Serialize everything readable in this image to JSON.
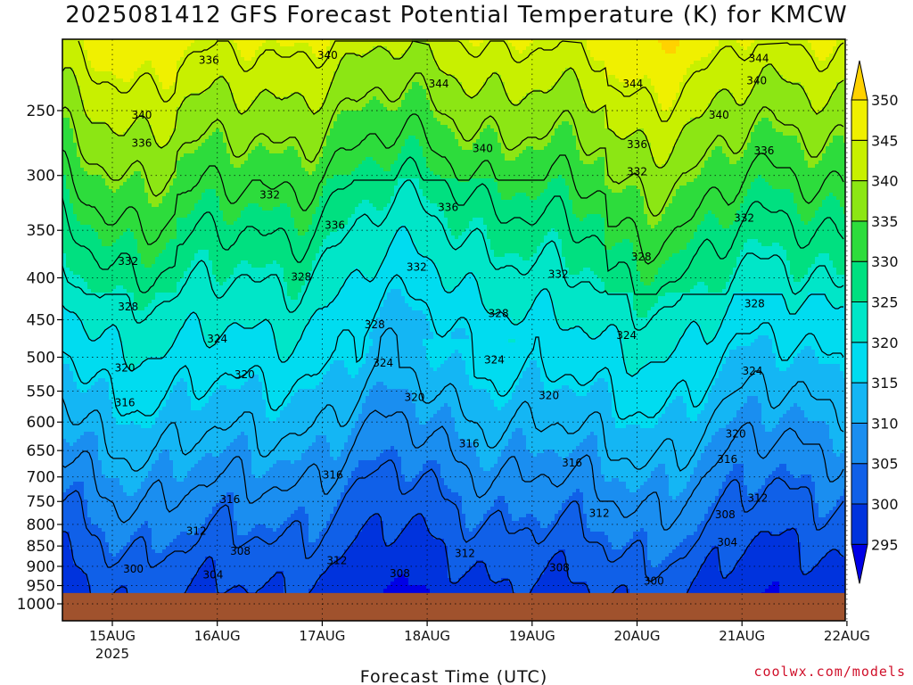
{
  "title": "2025081412 GFS Forecast Potential Temperature (K) for KMCW",
  "credit": "coolwx.com/models",
  "chart_data": {
    "type": "heatmap",
    "title": "2025081412 GFS Forecast Potential Temperature (K) for KMCW",
    "xlabel": "Forecast Time (UTC)",
    "ylabel": "",
    "x_ticks": [
      "15AUG",
      "16AUG",
      "17AUG",
      "18AUG",
      "19AUG",
      "20AUG",
      "21AUG",
      "22AUG"
    ],
    "x_year_label": "2025",
    "y_ticks": [
      250,
      300,
      350,
      400,
      450,
      500,
      550,
      600,
      650,
      700,
      750,
      800,
      850,
      900,
      950,
      1000
    ],
    "y_scale": "log",
    "y_inverted": true,
    "colorbar": {
      "levels": [
        295,
        300,
        305,
        310,
        315,
        320,
        325,
        330,
        335,
        340,
        345,
        350
      ],
      "colors": [
        "#0000e6",
        "#0033dd",
        "#1060e8",
        "#1a8ef0",
        "#14b6f4",
        "#00dcf0",
        "#00e6c8",
        "#00e080",
        "#2ddc3c",
        "#8ce614",
        "#c8f000",
        "#f0f000",
        "#ffd200"
      ]
    },
    "ground_color": "#a0522d",
    "contour_levels": [
      300,
      304,
      308,
      312,
      316,
      320,
      324,
      328,
      332,
      336,
      340,
      344
    ],
    "contour_labels": [
      {
        "text": "336",
        "t": 0.92,
        "p": 217
      },
      {
        "text": "340",
        "t": 2.05,
        "p": 214
      },
      {
        "text": "344",
        "t": 3.11,
        "p": 232
      },
      {
        "text": "344",
        "t": 4.96,
        "p": 232
      },
      {
        "text": "344",
        "t": 6.16,
        "p": 216
      },
      {
        "text": "340",
        "t": 6.14,
        "p": 230
      },
      {
        "text": "340",
        "t": 0.28,
        "p": 253
      },
      {
        "text": "340",
        "t": 5.78,
        "p": 253
      },
      {
        "text": "336",
        "t": 0.28,
        "p": 274
      },
      {
        "text": "340",
        "t": 3.53,
        "p": 278
      },
      {
        "text": "336",
        "t": 5.0,
        "p": 275
      },
      {
        "text": "336",
        "t": 6.21,
        "p": 280
      },
      {
        "text": "332",
        "t": 5.0,
        "p": 297
      },
      {
        "text": "332",
        "t": 1.5,
        "p": 317
      },
      {
        "text": "336",
        "t": 3.2,
        "p": 328
      },
      {
        "text": "336",
        "t": 2.12,
        "p": 345
      },
      {
        "text": "332",
        "t": 6.02,
        "p": 338
      },
      {
        "text": "332",
        "t": 0.15,
        "p": 382
      },
      {
        "text": "332",
        "t": 2.9,
        "p": 388
      },
      {
        "text": "332",
        "t": 4.25,
        "p": 396
      },
      {
        "text": "328",
        "t": 5.04,
        "p": 377
      },
      {
        "text": "328",
        "t": 1.8,
        "p": 399
      },
      {
        "text": "328",
        "t": 0.15,
        "p": 434
      },
      {
        "text": "328",
        "t": 3.68,
        "p": 442
      },
      {
        "text": "328",
        "t": 2.5,
        "p": 456
      },
      {
        "text": "328",
        "t": 6.12,
        "p": 430
      },
      {
        "text": "324",
        "t": 1.0,
        "p": 475
      },
      {
        "text": "324",
        "t": 4.9,
        "p": 470
      },
      {
        "text": "324",
        "t": 2.58,
        "p": 508
      },
      {
        "text": "324",
        "t": 3.64,
        "p": 504
      },
      {
        "text": "324",
        "t": 6.1,
        "p": 520
      },
      {
        "text": "320",
        "t": 0.12,
        "p": 515
      },
      {
        "text": "320",
        "t": 1.26,
        "p": 525
      },
      {
        "text": "320",
        "t": 2.88,
        "p": 560
      },
      {
        "text": "320",
        "t": 4.16,
        "p": 557
      },
      {
        "text": "320",
        "t": 5.94,
        "p": 620
      },
      {
        "text": "316",
        "t": 0.12,
        "p": 568
      },
      {
        "text": "316",
        "t": 3.4,
        "p": 638
      },
      {
        "text": "316",
        "t": 2.1,
        "p": 696
      },
      {
        "text": "316",
        "t": 4.38,
        "p": 673
      },
      {
        "text": "316",
        "t": 5.86,
        "p": 666
      },
      {
        "text": "316",
        "t": 1.12,
        "p": 746
      },
      {
        "text": "312",
        "t": 6.15,
        "p": 743
      },
      {
        "text": "312",
        "t": 4.64,
        "p": 775
      },
      {
        "text": "312",
        "t": 0.8,
        "p": 815
      },
      {
        "text": "308",
        "t": 5.84,
        "p": 778
      },
      {
        "text": "304",
        "t": 5.86,
        "p": 841
      },
      {
        "text": "308",
        "t": 1.22,
        "p": 863
      },
      {
        "text": "312",
        "t": 3.36,
        "p": 868
      },
      {
        "text": "312",
        "t": 2.14,
        "p": 885
      },
      {
        "text": "308",
        "t": 2.74,
        "p": 918
      },
      {
        "text": "308",
        "t": 4.26,
        "p": 904
      },
      {
        "text": "300",
        "t": 0.2,
        "p": 907
      },
      {
        "text": "304",
        "t": 0.96,
        "p": 922
      },
      {
        "text": "300",
        "t": 5.16,
        "p": 938
      }
    ]
  }
}
